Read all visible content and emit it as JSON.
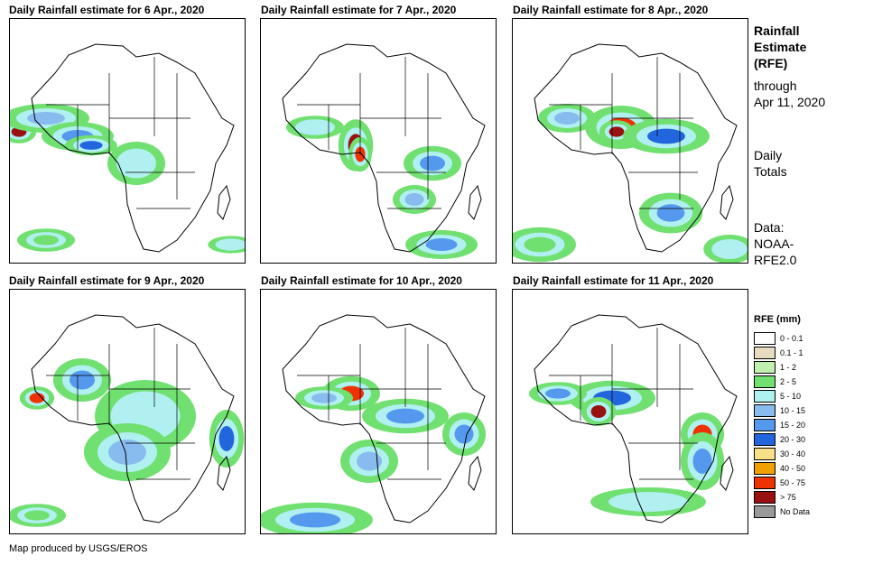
{
  "panels": [
    {
      "title": "Daily Rainfall estimate for 6 Apr., 2020"
    },
    {
      "title": "Daily Rainfall estimate for 7 Apr., 2020"
    },
    {
      "title": "Daily Rainfall estimate for 8 Apr., 2020"
    },
    {
      "title": "Daily Rainfall estimate for 9 Apr., 2020"
    },
    {
      "title": "Daily Rainfall estimate for 10 Apr., 2020"
    },
    {
      "title": "Daily Rainfall estimate for 11 Apr., 2020"
    }
  ],
  "sidebar": {
    "title_lines": [
      "Rainfall",
      "Estimate",
      "(RFE)"
    ],
    "through_lines": [
      "through",
      "Apr 11, 2020"
    ],
    "totals_lines": [
      "Daily",
      "Totals"
    ],
    "data_lines": [
      "Data:",
      "NOAA-",
      "RFE2.0"
    ]
  },
  "legend": {
    "title": "RFE (mm)",
    "items": [
      {
        "label": "0 - 0.1",
        "color": "#ffffff"
      },
      {
        "label": "0.1 - 1",
        "color": "#e8dcc0"
      },
      {
        "label": "1 - 2",
        "color": "#c0f0b0"
      },
      {
        "label": "2 - 5",
        "color": "#70e070"
      },
      {
        "label": "5 - 10",
        "color": "#b0f0f0"
      },
      {
        "label": "10 - 15",
        "color": "#88bbee"
      },
      {
        "label": "15 - 20",
        "color": "#5599ee"
      },
      {
        "label": "20 - 30",
        "color": "#2266dd"
      },
      {
        "label": "30 - 40",
        "color": "#f8e088"
      },
      {
        "label": "40 - 50",
        "color": "#f0a000"
      },
      {
        "label": "50 - 75",
        "color": "#ee3300"
      },
      {
        "label": "> 75",
        "color": "#991111"
      },
      {
        "label": "No Data",
        "color": "#999999"
      }
    ]
  },
  "credit": "Map produced by USGS/EROS"
}
